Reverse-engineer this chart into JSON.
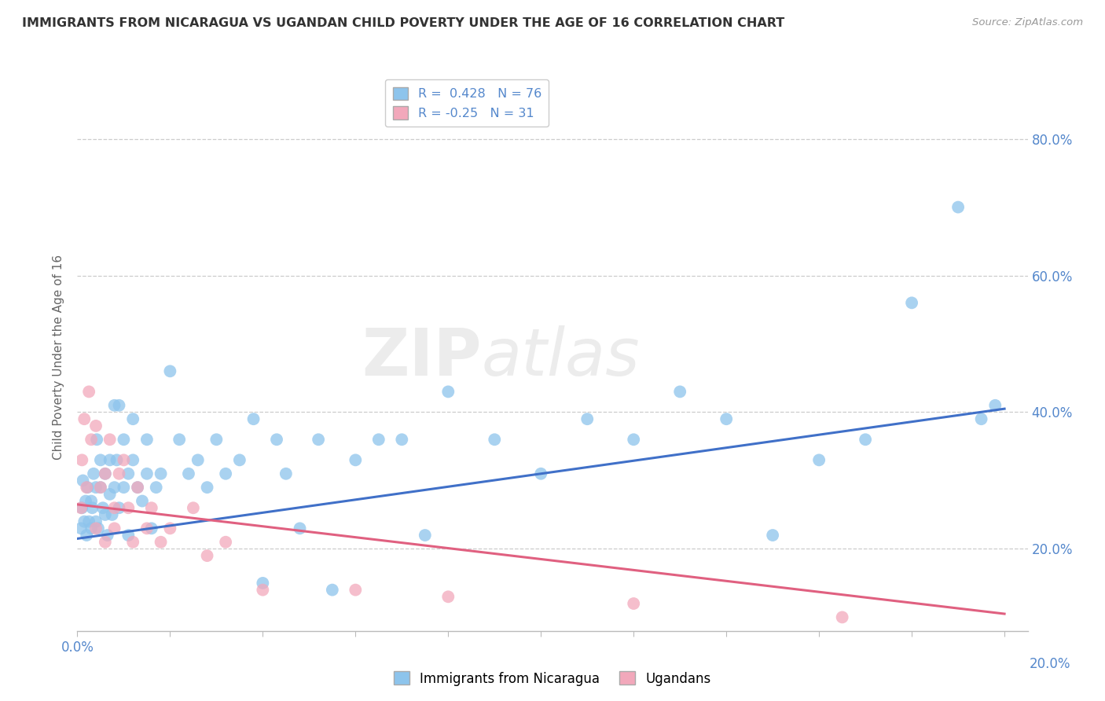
{
  "title": "IMMIGRANTS FROM NICARAGUA VS UGANDAN CHILD POVERTY UNDER THE AGE OF 16 CORRELATION CHART",
  "source": "Source: ZipAtlas.com",
  "ylabel": "Child Poverty Under the Age of 16",
  "xlim": [
    0.0,
    0.205
  ],
  "ylim": [
    0.08,
    0.88
  ],
  "ytick_vals": [
    0.2,
    0.4,
    0.6,
    0.8
  ],
  "blue_R": 0.428,
  "blue_N": 76,
  "pink_R": -0.25,
  "pink_N": 31,
  "blue_color": "#8DC4EC",
  "pink_color": "#F2A8BB",
  "blue_line_color": "#4070C8",
  "pink_line_color": "#E06080",
  "legend_label_blue": "Immigrants from Nicaragua",
  "legend_label_pink": "Ugandans",
  "blue_scatter_x": [
    0.0008,
    0.001,
    0.0012,
    0.0015,
    0.0018,
    0.002,
    0.0022,
    0.0025,
    0.003,
    0.003,
    0.0032,
    0.0035,
    0.004,
    0.004,
    0.0042,
    0.0045,
    0.005,
    0.005,
    0.0055,
    0.006,
    0.006,
    0.0065,
    0.007,
    0.007,
    0.0075,
    0.008,
    0.008,
    0.0085,
    0.009,
    0.009,
    0.01,
    0.01,
    0.011,
    0.011,
    0.012,
    0.012,
    0.013,
    0.014,
    0.015,
    0.015,
    0.016,
    0.017,
    0.018,
    0.02,
    0.022,
    0.024,
    0.026,
    0.028,
    0.03,
    0.032,
    0.035,
    0.038,
    0.04,
    0.043,
    0.045,
    0.048,
    0.052,
    0.055,
    0.06,
    0.065,
    0.07,
    0.075,
    0.08,
    0.09,
    0.1,
    0.11,
    0.12,
    0.13,
    0.14,
    0.15,
    0.16,
    0.17,
    0.18,
    0.19,
    0.195,
    0.198
  ],
  "blue_scatter_y": [
    0.23,
    0.26,
    0.3,
    0.24,
    0.27,
    0.22,
    0.29,
    0.24,
    0.27,
    0.23,
    0.26,
    0.31,
    0.29,
    0.24,
    0.36,
    0.23,
    0.29,
    0.33,
    0.26,
    0.31,
    0.25,
    0.22,
    0.28,
    0.33,
    0.25,
    0.41,
    0.29,
    0.33,
    0.26,
    0.41,
    0.29,
    0.36,
    0.31,
    0.22,
    0.33,
    0.39,
    0.29,
    0.27,
    0.31,
    0.36,
    0.23,
    0.29,
    0.31,
    0.46,
    0.36,
    0.31,
    0.33,
    0.29,
    0.36,
    0.31,
    0.33,
    0.39,
    0.15,
    0.36,
    0.31,
    0.23,
    0.36,
    0.14,
    0.33,
    0.36,
    0.36,
    0.22,
    0.43,
    0.36,
    0.31,
    0.39,
    0.36,
    0.43,
    0.39,
    0.22,
    0.33,
    0.36,
    0.56,
    0.7,
    0.39,
    0.41
  ],
  "pink_scatter_x": [
    0.0008,
    0.001,
    0.0015,
    0.002,
    0.0025,
    0.003,
    0.004,
    0.004,
    0.005,
    0.006,
    0.006,
    0.007,
    0.008,
    0.008,
    0.009,
    0.01,
    0.011,
    0.012,
    0.013,
    0.015,
    0.016,
    0.018,
    0.02,
    0.025,
    0.028,
    0.032,
    0.04,
    0.06,
    0.08,
    0.12,
    0.165
  ],
  "pink_scatter_y": [
    0.26,
    0.33,
    0.39,
    0.29,
    0.43,
    0.36,
    0.23,
    0.38,
    0.29,
    0.31,
    0.21,
    0.36,
    0.26,
    0.23,
    0.31,
    0.33,
    0.26,
    0.21,
    0.29,
    0.23,
    0.26,
    0.21,
    0.23,
    0.26,
    0.19,
    0.21,
    0.14,
    0.14,
    0.13,
    0.12,
    0.1
  ],
  "blue_trend_x": [
    0.0,
    0.2
  ],
  "blue_trend_y": [
    0.215,
    0.405
  ],
  "pink_trend_x": [
    0.0,
    0.2
  ],
  "pink_trend_y": [
    0.265,
    0.105
  ],
  "background_color": "#FFFFFF",
  "grid_color": "#CCCCCC",
  "title_color": "#333333",
  "axis_label_color": "#666666",
  "tick_label_color": "#5588CC"
}
